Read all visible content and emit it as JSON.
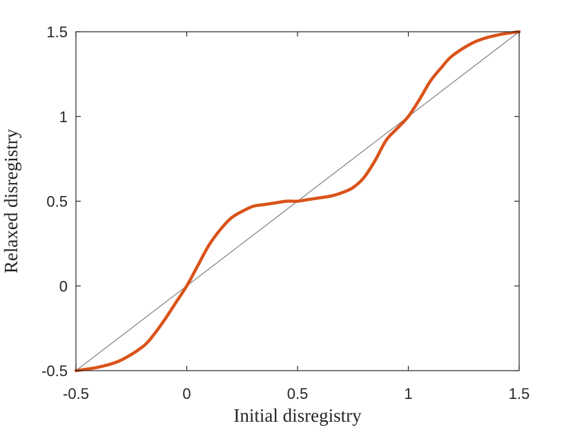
{
  "chart_data": {
    "type": "line",
    "title": "",
    "xlabel": "Initial disregistry",
    "ylabel": "Relaxed disregistry",
    "xlim": [
      -0.5,
      1.5
    ],
    "ylim": [
      -0.5,
      1.5
    ],
    "x_ticks": [
      -0.5,
      0,
      0.5,
      1,
      1.5
    ],
    "y_ticks": [
      -0.5,
      0,
      0.5,
      1,
      1.5
    ],
    "x_tick_labels": [
      "-0.5",
      "0",
      "0.5",
      "1",
      "1.5"
    ],
    "y_tick_labels": [
      "-0.5",
      "0",
      "0.5",
      "1",
      "1.5"
    ],
    "grid": false,
    "legend": "none",
    "series": [
      {
        "color": "#7f7f7f",
        "x": [
          -0.5,
          1.5
        ],
        "y": [
          -0.5,
          1.5
        ]
      },
      {
        "color": "#d95319",
        "x": [
          -0.5,
          -0.4,
          -0.3,
          -0.2,
          -0.15,
          -0.1,
          -0.05,
          0,
          0.05,
          0.1,
          0.15,
          0.2,
          0.25,
          0.3,
          0.35,
          0.4,
          0.45,
          0.5,
          0.55,
          0.6,
          0.65,
          0.7,
          0.75,
          0.8,
          0.85,
          0.9,
          0.95,
          1,
          1.05,
          1.1,
          1.15,
          1.2,
          1.3,
          1.4,
          1.5
        ],
        "y": [
          -0.5,
          -0.48,
          -0.44,
          -0.36,
          -0.29,
          -0.2,
          -0.1,
          0,
          0.12,
          0.24,
          0.33,
          0.4,
          0.44,
          0.47,
          0.48,
          0.49,
          0.5,
          0.5,
          0.51,
          0.52,
          0.53,
          0.55,
          0.58,
          0.64,
          0.74,
          0.86,
          0.93,
          1,
          1.1,
          1.21,
          1.29,
          1.36,
          1.44,
          1.48,
          1.5
        ]
      }
    ]
  }
}
